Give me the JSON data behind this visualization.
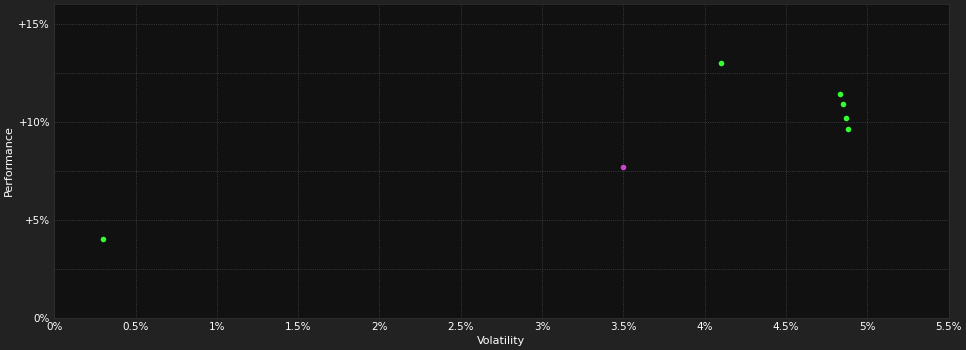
{
  "background_color": "#222222",
  "plot_bg_color": "#111111",
  "grid_color": "#555555",
  "text_color": "#ffffff",
  "xlabel": "Volatility",
  "ylabel": "Performance",
  "xlim": [
    0.0,
    0.055
  ],
  "ylim": [
    0.0,
    0.16
  ],
  "xticks": [
    0.0,
    0.005,
    0.01,
    0.015,
    0.02,
    0.025,
    0.03,
    0.035,
    0.04,
    0.045,
    0.05,
    0.055
  ],
  "xtick_labels": [
    "0%",
    "0.5%",
    "1%",
    "1.5%",
    "2%",
    "2.5%",
    "3%",
    "3.5%",
    "4%",
    "4.5%",
    "5%",
    "5.5%"
  ],
  "ytick_labels": [
    "0%",
    "",
    "+5%",
    "",
    "+10%",
    "",
    "+15%"
  ],
  "yticks": [
    0.0,
    0.025,
    0.05,
    0.075,
    0.1,
    0.125,
    0.15
  ],
  "green_points": [
    [
      0.003,
      0.04
    ],
    [
      0.041,
      0.13
    ],
    [
      0.0483,
      0.114
    ],
    [
      0.0485,
      0.109
    ],
    [
      0.0487,
      0.102
    ],
    [
      0.0488,
      0.096
    ]
  ],
  "magenta_points": [
    [
      0.035,
      0.077
    ]
  ],
  "green_color": "#33ff33",
  "magenta_color": "#cc44cc",
  "marker_size": 4
}
